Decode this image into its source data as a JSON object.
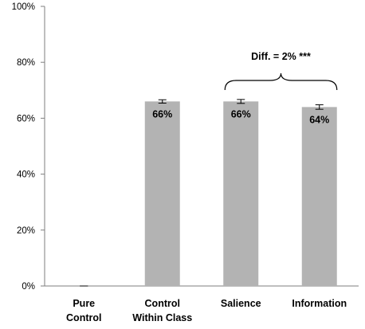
{
  "chart_data": {
    "type": "bar",
    "categories": [
      [
        "Pure",
        "Control"
      ],
      [
        "Control",
        "Within Class"
      ],
      [
        "Salience"
      ],
      [
        "Information"
      ]
    ],
    "values": [
      0,
      66,
      66,
      64
    ],
    "errors": [
      0.0,
      0.6,
      0.7,
      0.8
    ],
    "data_labels": [
      "",
      "66%",
      "66%",
      "64%"
    ],
    "ylim": [
      0,
      100
    ],
    "yticks": [
      0,
      20,
      40,
      60,
      80,
      100
    ],
    "ytick_labels": [
      "0%",
      "20%",
      "40%",
      "60%",
      "80%",
      "100%"
    ],
    "grid": false,
    "bar_color": "#b3b3b3",
    "annotation": {
      "text": "Diff. = 2% ***",
      "spans": [
        "Salience",
        "Information"
      ]
    }
  }
}
